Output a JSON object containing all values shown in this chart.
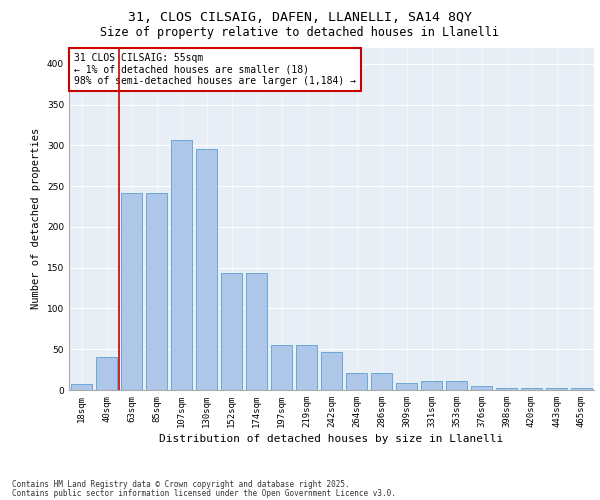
{
  "title1": "31, CLOS CILSAIG, DAFEN, LLANELLI, SA14 8QY",
  "title2": "Size of property relative to detached houses in Llanelli",
  "xlabel": "Distribution of detached houses by size in Llanelli",
  "ylabel": "Number of detached properties",
  "categories": [
    "18sqm",
    "40sqm",
    "63sqm",
    "85sqm",
    "107sqm",
    "130sqm",
    "152sqm",
    "174sqm",
    "197sqm",
    "219sqm",
    "242sqm",
    "264sqm",
    "286sqm",
    "309sqm",
    "331sqm",
    "353sqm",
    "376sqm",
    "398sqm",
    "420sqm",
    "443sqm",
    "465sqm"
  ],
  "values": [
    7,
    40,
    242,
    242,
    307,
    295,
    144,
    144,
    55,
    55,
    47,
    21,
    21,
    9,
    11,
    11,
    5,
    3,
    3,
    2,
    3
  ],
  "bar_color": "#aec6e8",
  "bar_edge_color": "#5a9fd4",
  "background_color": "#e8eef5",
  "vline_x": 1.5,
  "vline_color": "#cc0000",
  "annotation_title": "31 CLOS CILSAIG: 55sqm",
  "annotation_line1": "← 1% of detached houses are smaller (18)",
  "annotation_line2": "98% of semi-detached houses are larger (1,184) →",
  "annotation_box_color": "#cc0000",
  "ylim": [
    0,
    420
  ],
  "yticks": [
    0,
    50,
    100,
    150,
    200,
    250,
    300,
    350,
    400
  ],
  "footnote1": "Contains HM Land Registry data © Crown copyright and database right 2025.",
  "footnote2": "Contains public sector information licensed under the Open Government Licence v3.0.",
  "title_fontsize": 9.5,
  "subtitle_fontsize": 8.5,
  "axis_label_fontsize": 7.5,
  "tick_fontsize": 6.5,
  "annot_fontsize": 7,
  "footnote_fontsize": 5.5
}
